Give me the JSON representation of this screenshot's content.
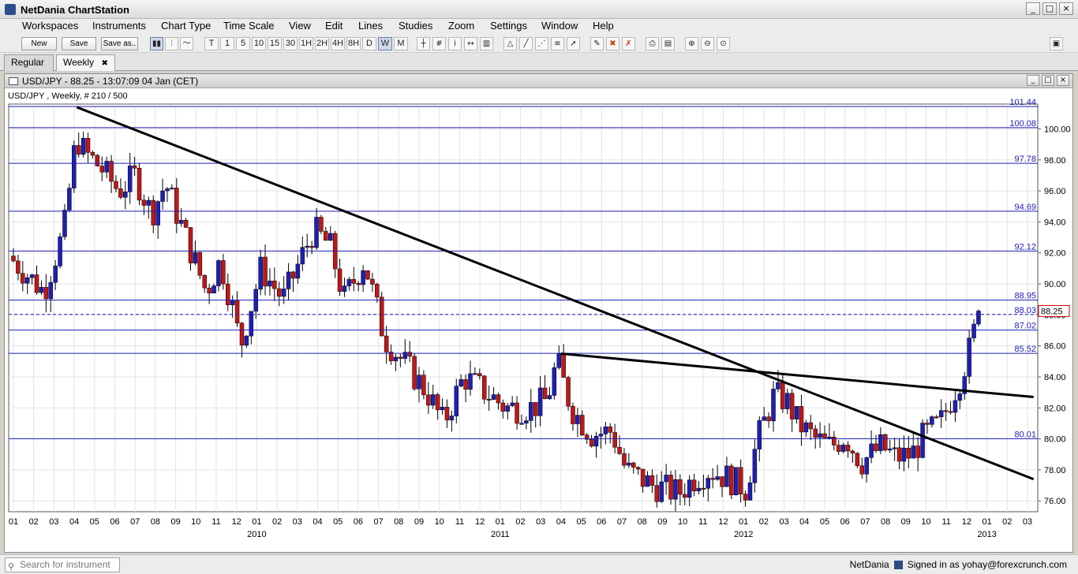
{
  "app": {
    "title": "NetDania ChartStation"
  },
  "window_controls": [
    "_",
    "□",
    "×"
  ],
  "menu": [
    "Workspaces",
    "Instruments",
    "Chart Type",
    "Time Scale",
    "View",
    "Edit",
    "Lines",
    "Studies",
    "Zoom",
    "Settings",
    "Window",
    "Help"
  ],
  "toolbar": {
    "new_label": "New",
    "save_label": "Save",
    "saveas_label": "Save as..",
    "timeframes": [
      "T",
      "1",
      "5",
      "10",
      "15",
      "30",
      "1H",
      "2H",
      "4H",
      "8H",
      "D",
      "W",
      "M"
    ],
    "active_timeframe": "W"
  },
  "tabs": [
    {
      "label": "Regular",
      "active": false
    },
    {
      "label": "Weekly",
      "active": true,
      "close": "✖"
    }
  ],
  "chart_window": {
    "title": "USD/JPY - 88.25 - 13:07:09  04 Jan (CET)"
  },
  "chart_data": {
    "type": "candlestick",
    "subtitle": "USD/JPY , Weekly, # 210 / 500",
    "last_price": 88.25,
    "last_price_label": "88.25",
    "ylim": [
      75.3,
      101.6
    ],
    "grid": true,
    "colors": {
      "up": "#1f1fb4",
      "down": "#c01818",
      "hline": "#1d1db5",
      "trend": "#000000"
    },
    "y_ticks": [
      "76.00",
      "78.00",
      "80.00",
      "82.00",
      "84.00",
      "86.00",
      "88.00",
      "90.00",
      "92.00",
      "94.00",
      "96.00",
      "98.00",
      "100.00"
    ],
    "x_ticks": [
      "01",
      "02",
      "03",
      "04",
      "05",
      "06",
      "07",
      "08",
      "09",
      "10",
      "11",
      "12",
      "01",
      "02",
      "03",
      "04",
      "05",
      "06",
      "07",
      "08",
      "09",
      "10",
      "11",
      "12",
      "01",
      "02",
      "03",
      "04",
      "05",
      "06",
      "07",
      "08",
      "09",
      "10",
      "11",
      "12",
      "01",
      "02",
      "03",
      "04",
      "05",
      "06",
      "07",
      "08",
      "09",
      "10",
      "11",
      "12",
      "01",
      "02",
      "03"
    ],
    "year_labels": [
      {
        "label": "2010",
        "index": 12
      },
      {
        "label": "2011",
        "index": 24
      },
      {
        "label": "2012",
        "index": 36
      },
      {
        "label": "2013",
        "index": 48
      }
    ],
    "horizontal_levels": [
      {
        "value": 101.44,
        "label": "101.44"
      },
      {
        "value": 100.08,
        "label": "100.08"
      },
      {
        "value": 97.78,
        "label": "97.78"
      },
      {
        "value": 94.69,
        "label": "94.69"
      },
      {
        "value": 92.12,
        "label": "92.12"
      },
      {
        "value": 88.95,
        "label": "88.95"
      },
      {
        "value": 88.03,
        "label": "88.03",
        "dashed": true
      },
      {
        "value": 87.02,
        "label": "87.02"
      },
      {
        "value": 85.52,
        "label": "85.52"
      },
      {
        "value": 80.01,
        "label": "80.01"
      }
    ],
    "trend_lines": [
      {
        "x1": 3.12,
        "y1": 101.4,
        "x2": 50.3,
        "y2": 77.4
      },
      {
        "x1": 27.0,
        "y1": 85.5,
        "x2": 50.3,
        "y2": 82.7
      }
    ],
    "close_path": [
      [
        0,
        91.5
      ],
      [
        1.5,
        89.5
      ],
      [
        2.5,
        93.5
      ],
      [
        3.1,
        99.5
      ],
      [
        3.5,
        98.5
      ],
      [
        4.3,
        97.5
      ],
      [
        5.2,
        96.0
      ],
      [
        6.0,
        97.0
      ],
      [
        6.8,
        94.5
      ],
      [
        7.5,
        96.5
      ],
      [
        8.5,
        93.0
      ],
      [
        9.5,
        89.5
      ],
      [
        10.2,
        91.5
      ],
      [
        10.8,
        88.5
      ],
      [
        11.2,
        86.0
      ],
      [
        12.2,
        91.0
      ],
      [
        13.3,
        89.0
      ],
      [
        14.8,
        93.5
      ],
      [
        15.6,
        92.5
      ],
      [
        16.3,
        89.0
      ],
      [
        17.3,
        91.5
      ],
      [
        18.3,
        86.5
      ],
      [
        19.2,
        85.0
      ],
      [
        20.4,
        83.0
      ],
      [
        21.2,
        81.0
      ],
      [
        22.2,
        84.0
      ],
      [
        23.3,
        83.0
      ],
      [
        24.3,
        82.0
      ],
      [
        25.5,
        82.0
      ],
      [
        26.3,
        82.5
      ],
      [
        26.8,
        85.0
      ],
      [
        27.5,
        82.0
      ],
      [
        28.5,
        80.3
      ],
      [
        29.5,
        80.5
      ],
      [
        30.2,
        78.0
      ],
      [
        31.5,
        77.0
      ],
      [
        32.8,
        76.5
      ],
      [
        33.6,
        77.5
      ],
      [
        34.3,
        78.0
      ],
      [
        35.2,
        77.5
      ],
      [
        36.1,
        76.8
      ],
      [
        36.7,
        80.0
      ],
      [
        37.5,
        82.8
      ],
      [
        38.1,
        82.5
      ],
      [
        38.7,
        81.0
      ],
      [
        39.5,
        80.0
      ],
      [
        40.3,
        79.5
      ],
      [
        41.0,
        80.2
      ],
      [
        41.8,
        78.5
      ],
      [
        42.8,
        79.5
      ],
      [
        43.5,
        78.8
      ],
      [
        44.3,
        79.0
      ],
      [
        44.9,
        80.2
      ],
      [
        45.7,
        81.0
      ],
      [
        46.2,
        82.5
      ],
      [
        46.7,
        84.0
      ],
      [
        47.2,
        86.0
      ],
      [
        47.6,
        88.25
      ]
    ],
    "bars_per_month": 4.35
  },
  "status": {
    "search_placeholder": "Search for instrument",
    "provider": "NetDania",
    "signed_in": "Signed in as yohay@forexcrunch.com"
  }
}
